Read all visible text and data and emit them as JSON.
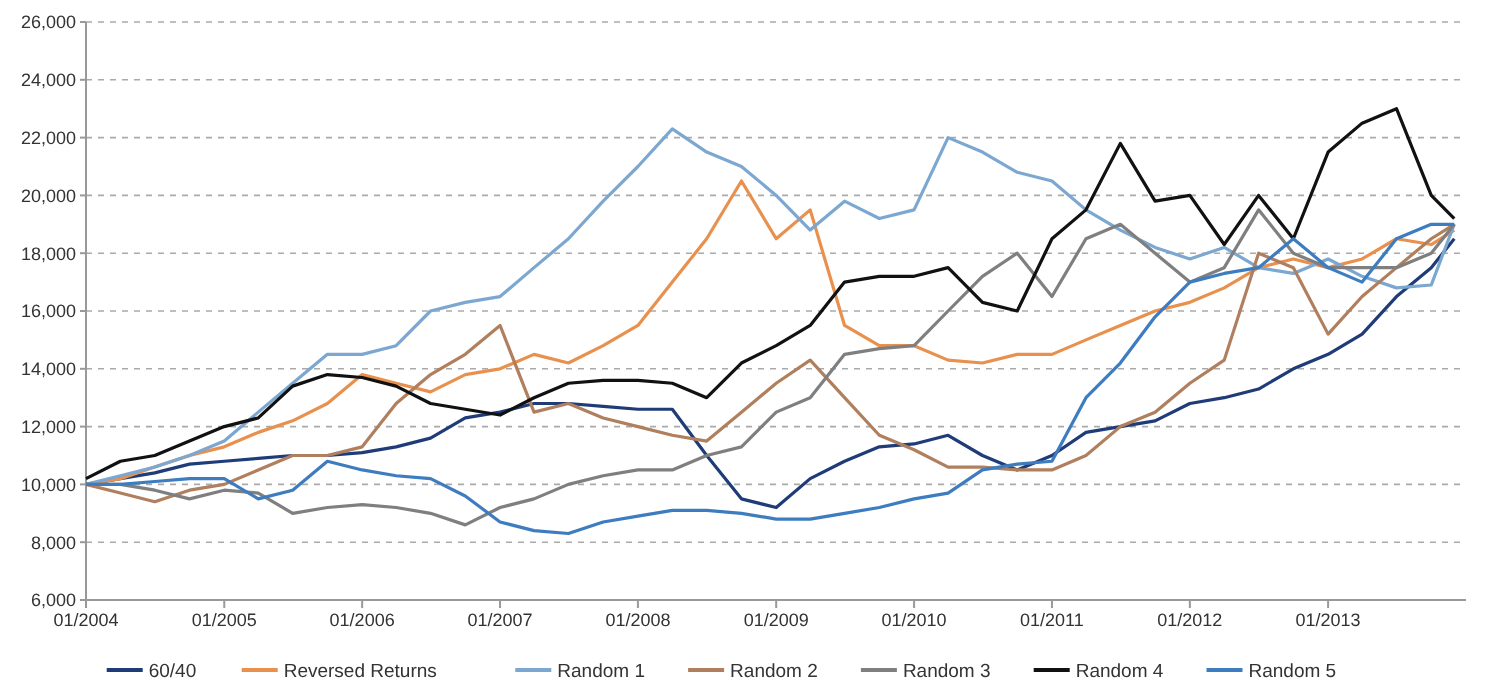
{
  "chart_data": {
    "type": "line",
    "x": [
      "2004-01",
      "2004-04",
      "2004-07",
      "2004-10",
      "2005-01",
      "2005-04",
      "2005-07",
      "2005-10",
      "2006-01",
      "2006-04",
      "2006-07",
      "2006-10",
      "2007-01",
      "2007-04",
      "2007-07",
      "2007-10",
      "2008-01",
      "2008-04",
      "2008-07",
      "2008-10",
      "2009-01",
      "2009-04",
      "2009-07",
      "2009-10",
      "2010-01",
      "2010-04",
      "2010-07",
      "2010-10",
      "2011-01",
      "2011-04",
      "2011-07",
      "2011-10",
      "2012-01",
      "2012-04",
      "2012-07",
      "2012-10",
      "2013-01",
      "2013-04",
      "2013-07",
      "2013-10",
      "2013-12"
    ],
    "series": [
      {
        "name": "60/40",
        "color": "#1f3c78",
        "values": [
          10000,
          10200,
          10400,
          10700,
          10800,
          10900,
          11000,
          11000,
          11100,
          11300,
          11600,
          12300,
          12500,
          12800,
          12800,
          12700,
          12600,
          12600,
          11000,
          9500,
          9200,
          10200,
          10800,
          11300,
          11400,
          11700,
          11000,
          10500,
          11000,
          11800,
          12000,
          12200,
          12800,
          13000,
          13300,
          14000,
          14500,
          15200,
          16500,
          17500,
          18500
        ]
      },
      {
        "name": "Reversed Returns",
        "color": "#e8904e",
        "values": [
          10000,
          10200,
          10600,
          11000,
          11300,
          11800,
          12200,
          12800,
          13800,
          13500,
          13200,
          13800,
          14000,
          14500,
          14200,
          14800,
          15500,
          17000,
          18500,
          20500,
          18500,
          19500,
          15500,
          14800,
          14800,
          14300,
          14200,
          14500,
          14500,
          15000,
          15500,
          16000,
          16300,
          16800,
          17500,
          17800,
          17500,
          17800,
          18500,
          18300,
          18800
        ]
      },
      {
        "name": "Random 1",
        "color": "#7ba7d0",
        "values": [
          10000,
          10300,
          10600,
          11000,
          11500,
          12500,
          13500,
          14500,
          14500,
          14800,
          16000,
          16300,
          16500,
          17500,
          18500,
          19800,
          21000,
          22300,
          21500,
          21000,
          20000,
          18800,
          19800,
          19200,
          19500,
          22000,
          21500,
          20800,
          20500,
          19500,
          18800,
          18200,
          17800,
          18200,
          17500,
          17300,
          17800,
          17200,
          16800,
          16900,
          19000
        ]
      },
      {
        "name": "Random 2",
        "color": "#b07f5e",
        "values": [
          10000,
          9700,
          9400,
          9800,
          10000,
          10500,
          11000,
          11000,
          11300,
          12800,
          13800,
          14500,
          15500,
          12500,
          12800,
          12300,
          12000,
          11700,
          11500,
          12500,
          13500,
          14300,
          13000,
          11700,
          11200,
          10600,
          10600,
          10500,
          10500,
          11000,
          12000,
          12500,
          13500,
          14300,
          18000,
          17500,
          15200,
          16500,
          17500,
          18500,
          19000
        ]
      },
      {
        "name": "Random 3",
        "color": "#7f7f7f",
        "values": [
          10000,
          10000,
          9800,
          9500,
          9800,
          9700,
          9000,
          9200,
          9300,
          9200,
          9000,
          8600,
          9200,
          9500,
          10000,
          10300,
          10500,
          10500,
          11000,
          11300,
          12500,
          13000,
          14500,
          14700,
          14800,
          16000,
          17200,
          18000,
          16500,
          18500,
          19000,
          18000,
          17000,
          17500,
          19500,
          18000,
          17500,
          17500,
          17500,
          18000,
          19000
        ]
      },
      {
        "name": "Random 4",
        "color": "#111111",
        "values": [
          10200,
          10800,
          11000,
          11500,
          12000,
          12300,
          13400,
          13800,
          13700,
          13400,
          12800,
          12600,
          12400,
          13000,
          13500,
          13600,
          13600,
          13500,
          13000,
          14200,
          14800,
          15500,
          17000,
          17200,
          17200,
          17500,
          16300,
          16000,
          18500,
          19500,
          21800,
          19800,
          20000,
          18300,
          20000,
          18500,
          21500,
          22500,
          23000,
          20000,
          19200
        ]
      },
      {
        "name": "Random 5",
        "color": "#3e7cc0",
        "values": [
          10000,
          10000,
          10100,
          10200,
          10200,
          9500,
          9800,
          10800,
          10500,
          10300,
          10200,
          9600,
          8700,
          8400,
          8300,
          8700,
          8900,
          9100,
          9100,
          9000,
          8800,
          8800,
          9000,
          9200,
          9500,
          9700,
          10500,
          10700,
          10800,
          13000,
          14200,
          15800,
          17000,
          17300,
          17500,
          18500,
          17500,
          17000,
          18500,
          19000,
          19000
        ]
      }
    ],
    "xlim": [
      "2004-01",
      "2014-01"
    ],
    "xticks": [
      {
        "value": "2004-01",
        "label": "01/2004"
      },
      {
        "value": "2005-01",
        "label": "01/2005"
      },
      {
        "value": "2006-01",
        "label": "01/2006"
      },
      {
        "value": "2007-01",
        "label": "01/2007"
      },
      {
        "value": "2008-01",
        "label": "01/2008"
      },
      {
        "value": "2009-01",
        "label": "01/2009"
      },
      {
        "value": "2010-01",
        "label": "01/2010"
      },
      {
        "value": "2011-01",
        "label": "01/2011"
      },
      {
        "value": "2012-01",
        "label": "01/2012"
      },
      {
        "value": "2013-01",
        "label": "01/2013"
      }
    ],
    "ylim": [
      6000,
      26000
    ],
    "yticks": [
      {
        "value": 6000,
        "label": "6,000"
      },
      {
        "value": 8000,
        "label": "8,000"
      },
      {
        "value": 10000,
        "label": "10,000"
      },
      {
        "value": 12000,
        "label": "12,000"
      },
      {
        "value": 14000,
        "label": "14,000"
      },
      {
        "value": 16000,
        "label": "16,000"
      },
      {
        "value": 18000,
        "label": "18,000"
      },
      {
        "value": 20000,
        "label": "20,000"
      },
      {
        "value": 22000,
        "label": "22,000"
      },
      {
        "value": 24000,
        "label": "24,000"
      },
      {
        "value": 26000,
        "label": "26,000"
      }
    ],
    "grid": "y",
    "legend": "bottom",
    "line_style": "solid",
    "marker": "none"
  }
}
